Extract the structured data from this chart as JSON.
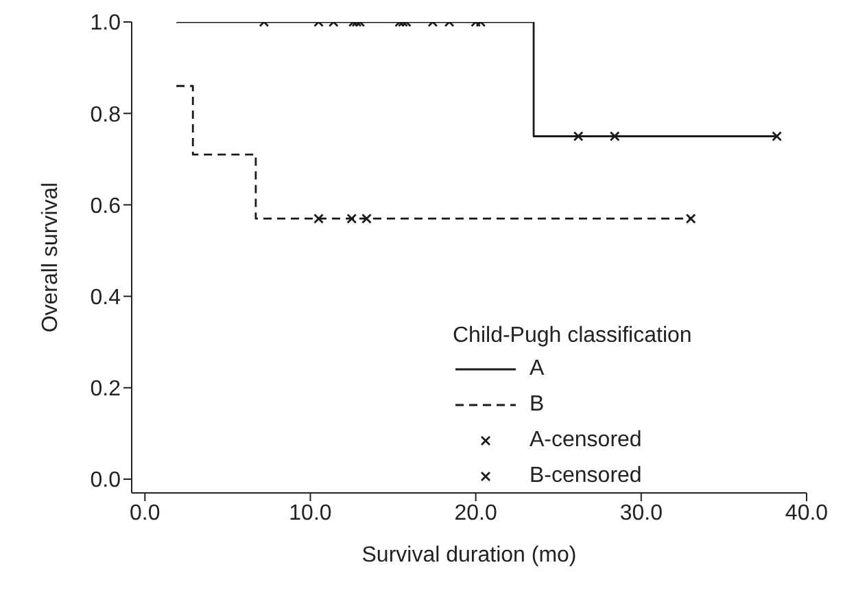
{
  "chart_data": {
    "type": "step",
    "xlabel": "Survival duration (mo)",
    "ylabel": "Overall survival",
    "legend_title": "Child-Pugh classification",
    "legend": "bottom right",
    "grid": false,
    "xlim": [
      -0.8,
      40
    ],
    "xticks": [
      {
        "value": 0,
        "label": "0.0"
      },
      {
        "value": 10,
        "label": "10.0"
      },
      {
        "value": 20,
        "label": "20.0"
      },
      {
        "value": 30,
        "label": "30.0"
      },
      {
        "value": 40,
        "label": "40.0"
      }
    ],
    "ylim": [
      -0.03,
      1.0
    ],
    "yticks": [
      {
        "value": 0,
        "label": "0.0"
      },
      {
        "value": 0.2,
        "label": "0.2"
      },
      {
        "value": 0.4,
        "label": "0.4"
      },
      {
        "value": 0.6,
        "label": "0.6"
      },
      {
        "value": 0.8,
        "label": "0.8"
      },
      {
        "value": 1.0,
        "label": "1.0"
      }
    ],
    "series": [
      {
        "name": "A",
        "color": "#1a1a1a",
        "line_style": "solid",
        "marker": "none",
        "x": [
          1.9,
          23.5,
          38.2
        ],
        "values": [
          1.0,
          0.75,
          0.75
        ]
      },
      {
        "name": "B",
        "color": "#1a1a1a",
        "line_style": "dashed",
        "marker": "none",
        "x": [
          1.9,
          2.9,
          6.7,
          33.0
        ],
        "values": [
          0.86,
          0.71,
          0.57,
          0.57
        ]
      },
      {
        "name": "A-censored",
        "type": "scatter",
        "color": "#1a1a1a",
        "marker": "cross",
        "x": [
          7.2,
          10.5,
          11.4,
          12.6,
          12.8,
          13.0,
          15.4,
          15.6,
          15.8,
          17.4,
          18.4,
          20.0,
          20.3,
          26.2,
          28.4,
          38.2
        ],
        "values": [
          1,
          1,
          1,
          1,
          1,
          1,
          1,
          1,
          1,
          1,
          1,
          1,
          1,
          0.75,
          0.75,
          0.75
        ]
      },
      {
        "name": "B-censored",
        "type": "scatter",
        "color": "#1a1a1a",
        "marker": "cross",
        "x": [
          10.5,
          12.5,
          13.4,
          33.0
        ],
        "values": [
          0.57,
          0.57,
          0.57,
          0.57
        ]
      }
    ]
  }
}
